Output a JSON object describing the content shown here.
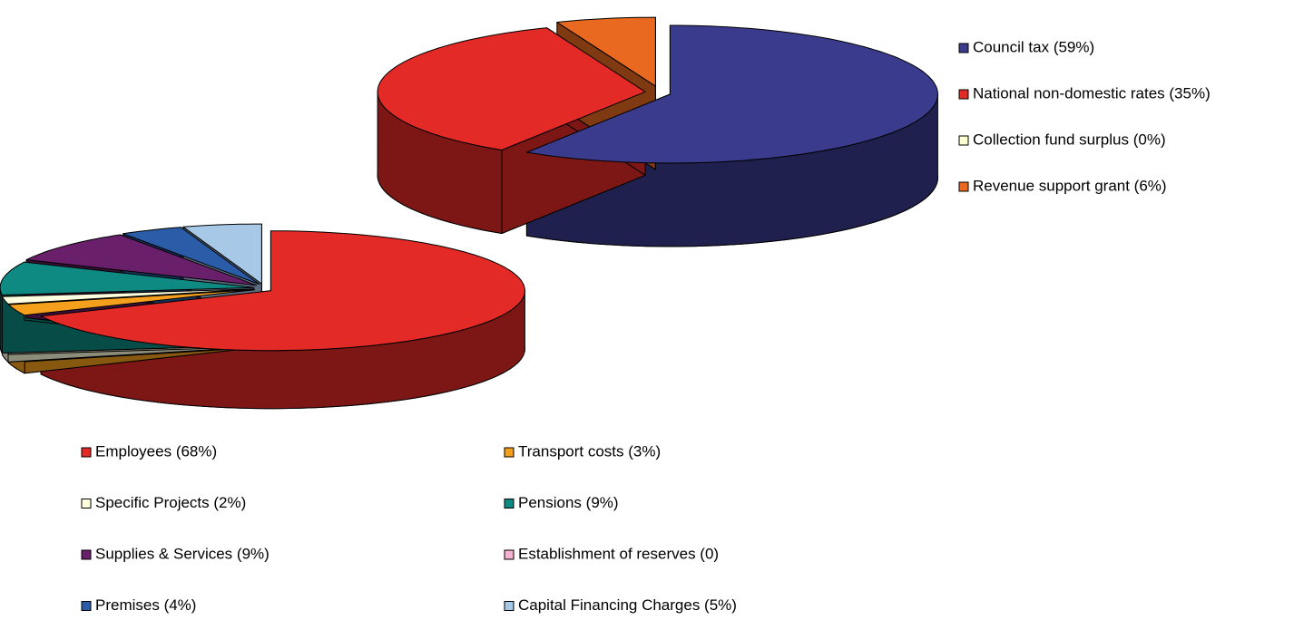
{
  "chart_data": [
    {
      "type": "pie",
      "categories": [
        "Council tax  (59%)",
        "National non-domestic rates (35%)",
        "Collection fund surplus  (0%)",
        "Revenue support grant (6%)"
      ],
      "values": [
        59,
        35,
        0,
        6
      ],
      "colors": [
        "#3b3b8e",
        "#e32a26",
        "#ffffd0",
        "#e8691f"
      ]
    },
    {
      "type": "pie",
      "categories": [
        "Employees (68%)",
        "Transport costs (3%)",
        "Specific Projects (2%)",
        "Pensions (9%)",
        "Supplies & Services (9%)",
        "Establishment of reserves (0)",
        "Premises  (4%)",
        "Capital Financing Charges (5%)"
      ],
      "values": [
        68,
        3,
        2,
        9,
        9,
        0,
        4,
        5
      ],
      "colors": [
        "#e32a26",
        "#f5a01c",
        "#ffffe0",
        "#0e8a82",
        "#6a1f6a",
        "#f5b3d0",
        "#2b5ca8",
        "#a8c8e8"
      ]
    }
  ]
}
